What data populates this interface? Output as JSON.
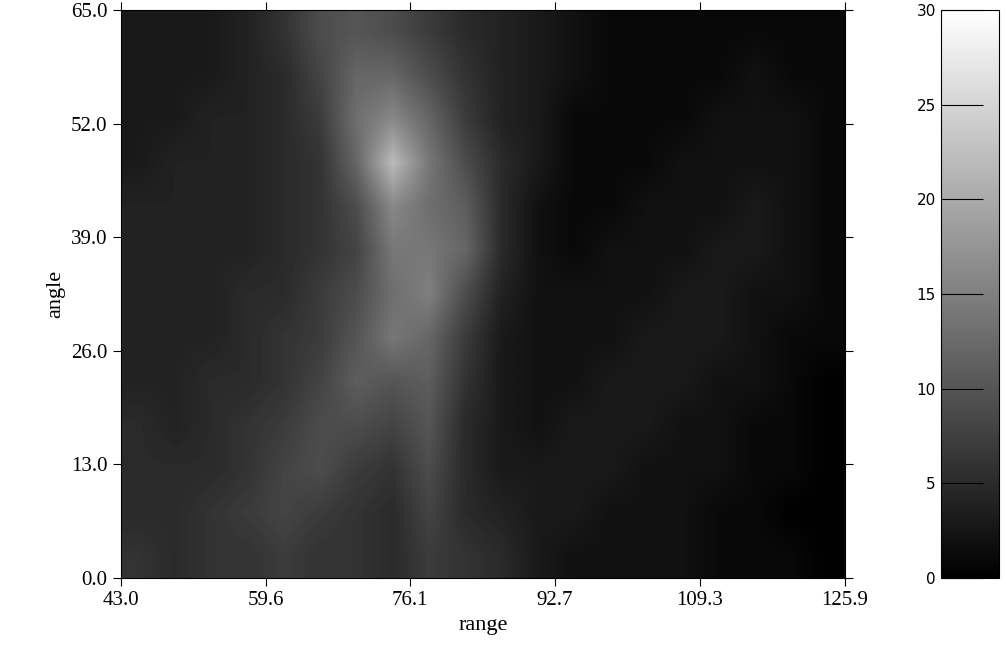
{
  "chart_data": {
    "type": "heatmap",
    "x_label": "range",
    "y_label": "angle",
    "xlim": [
      43.0,
      125.9
    ],
    "ylim": [
      0.0,
      65.0
    ],
    "xticks": [
      {
        "value": 43.0,
        "label": "43.0"
      },
      {
        "value": 59.6,
        "label": "59.6"
      },
      {
        "value": 76.1,
        "label": "76.1"
      },
      {
        "value": 92.7,
        "label": "92.7"
      },
      {
        "value": 109.3,
        "label": "109.3"
      },
      {
        "value": 125.9,
        "label": "125.9"
      }
    ],
    "yticks": [
      {
        "value": 0.0,
        "label": "0.0"
      },
      {
        "value": 13.0,
        "label": "13.0"
      },
      {
        "value": 26.0,
        "label": "26.0"
      },
      {
        "value": 39.0,
        "label": "39.0"
      },
      {
        "value": 52.0,
        "label": "52.0"
      },
      {
        "value": 65.0,
        "label": "65.0"
      }
    ],
    "cells": [
      [
        6,
        5,
        6,
        6,
        7,
        6,
        6,
        5,
        7,
        6,
        5,
        3,
        2,
        2,
        2,
        2,
        1,
        1,
        1,
        0
      ],
      [
        5,
        5,
        6,
        7,
        8,
        7,
        6,
        5,
        8,
        5,
        4,
        3,
        3,
        2,
        2,
        2,
        1,
        1,
        0,
        0
      ],
      [
        5,
        5,
        5,
        6,
        8,
        9,
        7,
        6,
        9,
        5,
        3,
        3,
        3,
        3,
        2,
        2,
        2,
        1,
        1,
        0
      ],
      [
        5,
        4,
        5,
        6,
        7,
        9,
        9,
        8,
        10,
        5,
        3,
        2,
        3,
        3,
        3,
        2,
        2,
        1,
        1,
        0
      ],
      [
        4,
        4,
        5,
        5,
        6,
        8,
        11,
        10,
        11,
        6,
        3,
        2,
        2,
        3,
        3,
        3,
        2,
        2,
        1,
        0
      ],
      [
        4,
        4,
        4,
        5,
        6,
        7,
        10,
        14,
        12,
        7,
        3,
        2,
        2,
        2,
        3,
        3,
        3,
        2,
        1,
        1
      ],
      [
        4,
        4,
        4,
        5,
        5,
        7,
        9,
        13,
        15,
        9,
        4,
        2,
        2,
        2,
        2,
        3,
        3,
        2,
        2,
        1
      ],
      [
        4,
        4,
        4,
        4,
        5,
        6,
        8,
        14,
        14,
        12,
        5,
        2,
        1,
        2,
        2,
        2,
        3,
        3,
        2,
        1
      ],
      [
        4,
        4,
        4,
        4,
        5,
        6,
        9,
        16,
        13,
        11,
        5,
        2,
        1,
        1,
        2,
        2,
        2,
        3,
        2,
        1
      ],
      [
        3,
        4,
        4,
        4,
        5,
        6,
        12,
        22,
        14,
        9,
        5,
        3,
        1,
        1,
        1,
        2,
        2,
        2,
        2,
        1
      ],
      [
        3,
        3,
        4,
        4,
        5,
        7,
        13,
        16,
        12,
        7,
        4,
        3,
        1,
        1,
        1,
        1,
        2,
        2,
        2,
        1
      ],
      [
        3,
        3,
        3,
        4,
        5,
        8,
        12,
        12,
        9,
        6,
        4,
        3,
        2,
        1,
        1,
        1,
        1,
        2,
        1,
        1
      ],
      [
        3,
        3,
        3,
        4,
        6,
        9,
        10,
        9,
        7,
        5,
        4,
        3,
        2,
        1,
        1,
        1,
        1,
        1,
        1,
        1
      ]
    ],
    "colorbar_range": [
      0,
      30
    ],
    "colorbar_ticks": [
      0,
      5,
      10,
      15,
      20,
      25,
      30
    ]
  }
}
